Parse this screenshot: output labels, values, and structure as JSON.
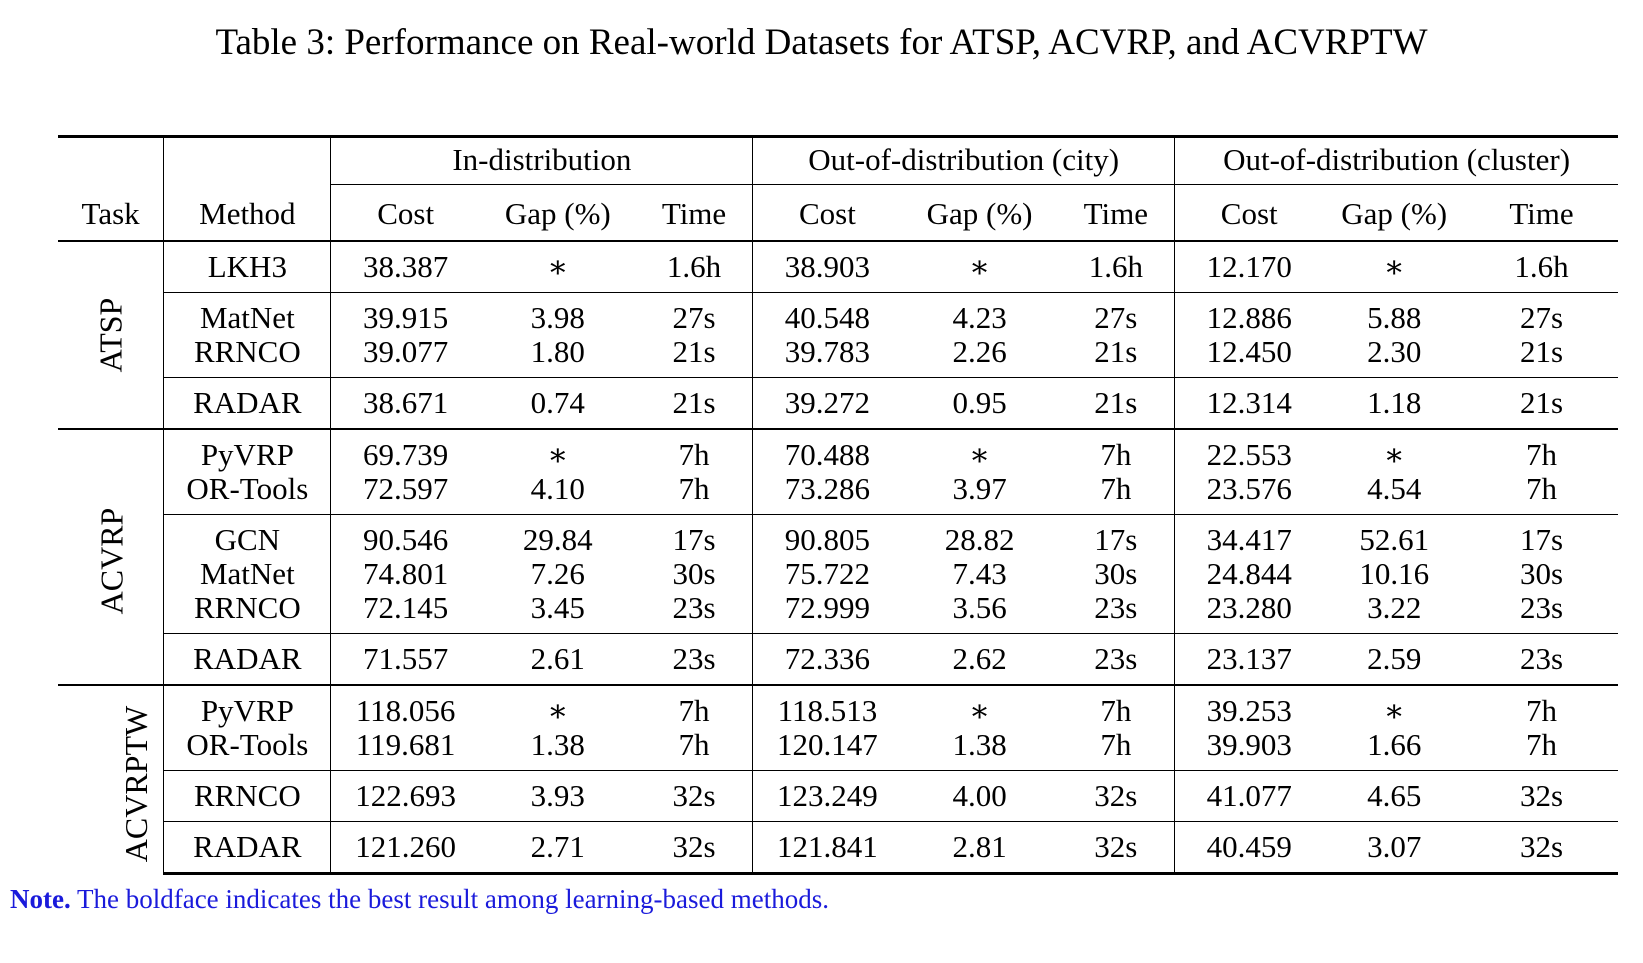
{
  "caption": "Table 3: Performance on Real-world Datasets for ATSP, ACVRP, and ACVRPTW",
  "header": {
    "task": "Task",
    "method": "Method",
    "groups": [
      "In-distribution",
      "Out-of-distribution (city)",
      "Out-of-distribution (cluster)"
    ],
    "cols": [
      "Cost",
      "Gap (%)",
      "Time"
    ]
  },
  "tasks": [
    {
      "name": "ATSP",
      "groups": [
        [
          {
            "method": "LKH3",
            "v": [
              "38.387",
              "∗",
              "1.6h",
              "38.903",
              "∗",
              "1.6h",
              "12.170",
              "∗",
              "1.6h"
            ],
            "bold": []
          }
        ],
        [
          {
            "method": "MatNet",
            "v": [
              "39.915",
              "3.98",
              "27s",
              "40.548",
              "4.23",
              "27s",
              "12.886",
              "5.88",
              "27s"
            ],
            "bold": []
          },
          {
            "method": "RRNCO",
            "v": [
              "39.077",
              "1.80",
              "21s",
              "39.783",
              "2.26",
              "21s",
              "12.450",
              "2.30",
              "21s"
            ],
            "bold": []
          }
        ],
        [
          {
            "method": "RADAR",
            "v": [
              "38.671",
              "0.74",
              "21s",
              "39.272",
              "0.95",
              "21s",
              "12.314",
              "1.18",
              "21s"
            ],
            "bold": [
              0,
              1,
              3,
              4,
              6,
              7
            ]
          }
        ]
      ]
    },
    {
      "name": "ACVRP",
      "groups": [
        [
          {
            "method": "PyVRP",
            "v": [
              "69.739",
              "∗",
              "7h",
              "70.488",
              "∗",
              "7h",
              "22.553",
              "∗",
              "7h"
            ],
            "bold": []
          },
          {
            "method": "OR-Tools",
            "v": [
              "72.597",
              "4.10",
              "7h",
              "73.286",
              "3.97",
              "7h",
              "23.576",
              "4.54",
              "7h"
            ],
            "bold": []
          }
        ],
        [
          {
            "method": "GCN",
            "v": [
              "90.546",
              "29.84",
              "17s",
              "90.805",
              "28.82",
              "17s",
              "34.417",
              "52.61",
              "17s"
            ],
            "bold": []
          },
          {
            "method": "MatNet",
            "v": [
              "74.801",
              "7.26",
              "30s",
              "75.722",
              "7.43",
              "30s",
              "24.844",
              "10.16",
              "30s"
            ],
            "bold": []
          },
          {
            "method": "RRNCO",
            "v": [
              "72.145",
              "3.45",
              "23s",
              "72.999",
              "3.56",
              "23s",
              "23.280",
              "3.22",
              "23s"
            ],
            "bold": []
          }
        ],
        [
          {
            "method": "RADAR",
            "v": [
              "71.557",
              "2.61",
              "23s",
              "72.336",
              "2.62",
              "23s",
              "23.137",
              "2.59",
              "23s"
            ],
            "bold": [
              0,
              1,
              3,
              4,
              6,
              7
            ]
          }
        ]
      ]
    },
    {
      "name": "ACVRPTW",
      "groups": [
        [
          {
            "method": "PyVRP",
            "v": [
              "118.056",
              "∗",
              "7h",
              "118.513",
              "∗",
              "7h",
              "39.253",
              "∗",
              "7h"
            ],
            "bold": []
          },
          {
            "method": "OR-Tools",
            "v": [
              "119.681",
              "1.38",
              "7h",
              "120.147",
              "1.38",
              "7h",
              "39.903",
              "1.66",
              "7h"
            ],
            "bold": []
          }
        ],
        [
          {
            "method": "RRNCO",
            "v": [
              "122.693",
              "3.93",
              "32s",
              "123.249",
              "4.00",
              "32s",
              "41.077",
              "4.65",
              "32s"
            ],
            "bold": []
          }
        ],
        [
          {
            "method": "RADAR",
            "v": [
              "121.260",
              "2.71",
              "32s",
              "121.841",
              "2.81",
              "32s",
              "40.459",
              "3.07",
              "32s"
            ],
            "bold": [
              0,
              1,
              3,
              4,
              6,
              7
            ]
          }
        ]
      ]
    }
  ],
  "note": {
    "label": "Note.",
    "text": " The boldface indicates the best result among learning-based methods."
  }
}
